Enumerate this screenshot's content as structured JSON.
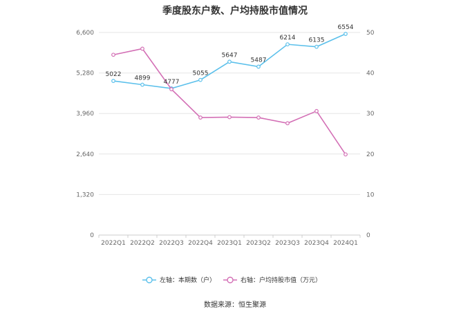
{
  "chart_data": {
    "type": "line",
    "title": "季度股东户数、户均持股市值情况",
    "categories": [
      "2022Q1",
      "2022Q2",
      "2022Q3",
      "2022Q4",
      "2023Q1",
      "2023Q2",
      "2023Q3",
      "2023Q4",
      "2024Q1"
    ],
    "left_axis": {
      "min": 0,
      "max": 6600,
      "ticks": [
        "0",
        "1,320",
        "2,640",
        "3,960",
        "5,280",
        "6,600"
      ],
      "tick_values": [
        0,
        1320,
        2640,
        3960,
        5280,
        6600
      ]
    },
    "right_axis": {
      "min": 0,
      "max": 50,
      "ticks": [
        "0",
        "10",
        "20",
        "30",
        "40",
        "50"
      ],
      "tick_values": [
        0,
        10,
        20,
        30,
        40,
        50
      ]
    },
    "grid": true,
    "legend_position": "bottom",
    "series": [
      {
        "name": "左轴：本期数（户）",
        "axis": "left",
        "color": "#5bc0eb",
        "values": [
          5022,
          4899,
          4777,
          5055,
          5647,
          5487,
          6214,
          6135,
          6554
        ],
        "labels": [
          "5022",
          "4899",
          "4777",
          "5055",
          "5647",
          "5487",
          "6214",
          "6135",
          "6554"
        ]
      },
      {
        "name": "右轴：户均持股市值（万元）",
        "axis": "right",
        "color": "#d36fb5",
        "values": [
          44.5,
          46.0,
          36.0,
          29.0,
          29.1,
          29.0,
          27.6,
          30.6,
          19.9
        ]
      }
    ],
    "source": "数据来源：恒生聚源"
  }
}
